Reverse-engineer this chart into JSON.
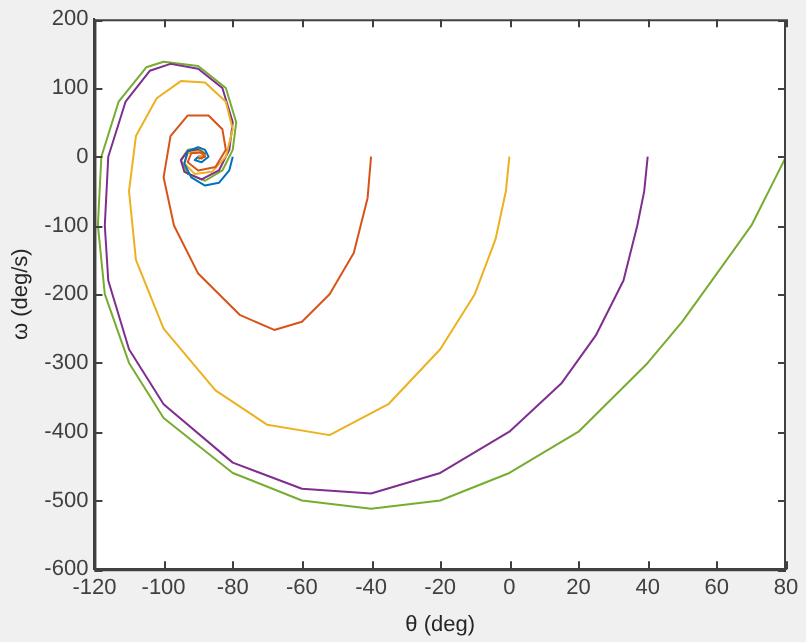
{
  "chart_data": {
    "type": "line",
    "xlabel": "θ (deg)",
    "ylabel": "ω (deg/s)",
    "xlim": [
      -120,
      80
    ],
    "ylim": [
      -600,
      200
    ],
    "xticks": [
      -120,
      -100,
      -80,
      -60,
      -40,
      -20,
      0,
      20,
      40,
      60,
      80
    ],
    "yticks": [
      -600,
      -500,
      -400,
      -300,
      -200,
      -100,
      0,
      100,
      200
    ],
    "grid": false,
    "legend": false,
    "marker": "none",
    "series": [
      {
        "color": "#0072bd",
        "x": [
          -80,
          -81,
          -84,
          -88,
          -92,
          -94,
          -93,
          -90,
          -88,
          -87,
          -89,
          -91,
          -90
        ],
        "values": [
          0,
          -20,
          -38,
          -42,
          -30,
          -10,
          8,
          14,
          10,
          0,
          -8,
          -5,
          0
        ]
      },
      {
        "color": "#d95319",
        "x": [
          -40,
          -41,
          -45,
          -52,
          -60,
          -68,
          -78,
          -90,
          -97,
          -100,
          -98,
          -93,
          -87,
          -83,
          -82,
          -85,
          -90,
          -93,
          -92,
          -89,
          -88,
          -90
        ],
        "values": [
          0,
          -60,
          -140,
          -200,
          -240,
          -252,
          -230,
          -170,
          -100,
          -30,
          30,
          60,
          60,
          40,
          10,
          -15,
          -20,
          -8,
          5,
          6,
          0,
          -3
        ]
      },
      {
        "color": "#edb120",
        "x": [
          0,
          -1,
          -4,
          -10,
          -20,
          -35,
          -52,
          -70,
          -85,
          -100,
          -108,
          -110,
          -108,
          -102,
          -95,
          -88,
          -82,
          -80,
          -82,
          -86,
          -91,
          -94,
          -93,
          -90,
          -88,
          -90
        ],
        "values": [
          0,
          -50,
          -120,
          -200,
          -280,
          -360,
          -405,
          -390,
          -340,
          -250,
          -150,
          -50,
          30,
          85,
          110,
          108,
          80,
          40,
          0,
          -22,
          -25,
          -10,
          5,
          8,
          2,
          0
        ]
      },
      {
        "color": "#7e2f8e",
        "x": [
          40,
          39,
          37,
          33,
          25,
          15,
          0,
          -20,
          -40,
          -60,
          -80,
          -100,
          -110,
          -116,
          -117,
          -116,
          -111,
          -104,
          -98,
          -90,
          -83,
          -80,
          -81,
          -84,
          -89,
          -94,
          -95,
          -93,
          -90,
          -88,
          -90
        ],
        "values": [
          0,
          -50,
          -100,
          -180,
          -260,
          -330,
          -400,
          -460,
          -490,
          -483,
          -445,
          -360,
          -280,
          -180,
          -100,
          0,
          80,
          125,
          135,
          128,
          100,
          50,
          10,
          -20,
          -33,
          -22,
          -5,
          8,
          10,
          3,
          0
        ]
      },
      {
        "color": "#77ac30",
        "x": [
          80,
          75,
          70,
          60,
          50,
          40,
          20,
          0,
          -20,
          -40,
          -60,
          -80,
          -100,
          -110,
          -117,
          -119,
          -118,
          -113,
          -105,
          -100,
          -90,
          -82,
          -79,
          -80,
          -83,
          -88,
          -93,
          -95,
          -93,
          -90,
          -88,
          -89,
          -90
        ],
        "values": [
          0,
          -50,
          -100,
          -170,
          -240,
          -300,
          -400,
          -460,
          -500,
          -512,
          -500,
          -460,
          -380,
          -300,
          -200,
          -100,
          0,
          80,
          130,
          138,
          132,
          100,
          50,
          10,
          -20,
          -35,
          -25,
          -5,
          10,
          12,
          5,
          -3,
          0
        ]
      }
    ]
  }
}
